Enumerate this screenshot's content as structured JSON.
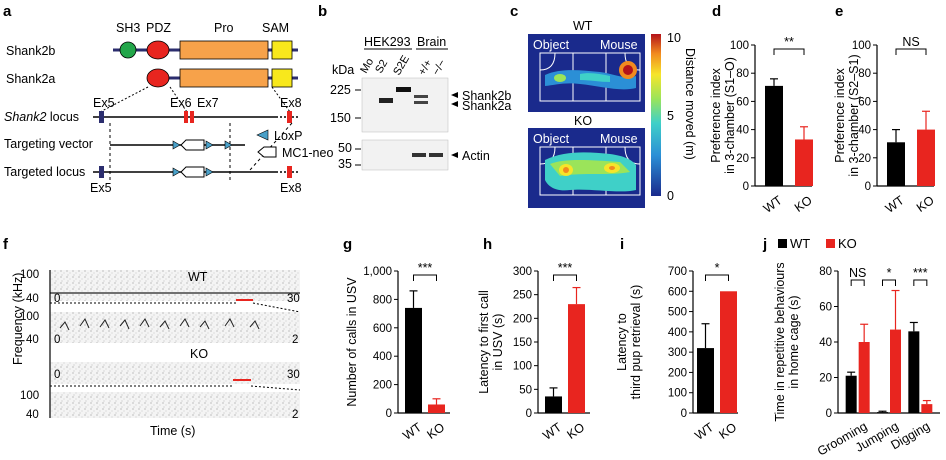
{
  "panels": {
    "a": "a",
    "b": "b",
    "c": "c",
    "d": "d",
    "e": "e",
    "f": "f",
    "g": "g",
    "h": "h",
    "i": "i",
    "j": "j"
  },
  "panel_a": {
    "domains": [
      "SH3",
      "PDZ",
      "Pro",
      "SAM"
    ],
    "isoforms": [
      "Shank2b",
      "Shank2a"
    ],
    "locus_label_italic": "Shank2",
    "locus_label_rest": " locus",
    "targeting_vector": "Targeting vector",
    "targeted_locus": "Targeted locus",
    "exons": [
      "Ex5",
      "Ex6",
      "Ex7",
      "Ex8"
    ],
    "legend": [
      "LoxP",
      "MC1-neo"
    ]
  },
  "panel_b": {
    "group_labels": [
      "HEK293",
      "Brain"
    ],
    "lane_labels": [
      "Mo",
      "S2",
      "S2E",
      "+/+",
      "−/−"
    ],
    "kda_label": "kDa",
    "markers_top": [
      "225",
      "150"
    ],
    "markers_bottom": [
      "50",
      "35"
    ],
    "bands_top": [
      "Shank2b",
      "Shank2a"
    ],
    "band_bottom": "Actin"
  },
  "panel_c": {
    "wt_label": "WT",
    "ko_label": "KO",
    "object_label": "Object",
    "mouse_label": "Mouse",
    "colorbar_label": "Distance moved (m)",
    "colorbar_ticks": [
      "10",
      "5",
      "0"
    ],
    "colors": {
      "bg": "#1a2a8c",
      "accent": "#d7261e"
    }
  },
  "panel_f": {
    "ylabel": "Frequency (kHz)",
    "xlabel": "Time (s)",
    "wt_label": "WT",
    "ko_label": "KO",
    "y_ticks": [
      "100",
      "40"
    ],
    "x_ticks_long": [
      "0",
      "30"
    ],
    "x_ticks_short": [
      "0",
      "2"
    ]
  },
  "chart_data": [
    {
      "id": "d",
      "type": "bar",
      "ylabel": "Preference index in 3-chamber (S1–O)",
      "ylabel_lines": [
        "Preference index",
        "in 3-chamber (S1–O)"
      ],
      "categories": [
        "WT",
        "KO"
      ],
      "values": [
        71,
        33
      ],
      "errors": [
        5,
        9
      ],
      "ylim": [
        0,
        100
      ],
      "yticks": [
        "0",
        "20",
        "40",
        "60",
        "80",
        "100"
      ],
      "significance": "**"
    },
    {
      "id": "e",
      "type": "bar",
      "ylabel": "Preference index in 3-chamber (S2–S1)",
      "ylabel_lines": [
        "Preference index",
        "in 3-chamber (S2–S1)"
      ],
      "categories": [
        "WT",
        "KO"
      ],
      "values": [
        31,
        40
      ],
      "errors": [
        9,
        13
      ],
      "ylim": [
        0,
        100
      ],
      "yticks": [
        "0",
        "20",
        "40",
        "60",
        "80",
        "100"
      ],
      "significance": "NS"
    },
    {
      "id": "g",
      "type": "bar",
      "ylabel": "Number of calls in USV",
      "ylabel_lines": [
        "Number of calls in USV"
      ],
      "categories": [
        "WT",
        "KO"
      ],
      "values": [
        740,
        60
      ],
      "errors": [
        120,
        40
      ],
      "ylim": [
        0,
        1000
      ],
      "yticks": [
        "0",
        "200",
        "400",
        "600",
        "800",
        "1,000"
      ],
      "significance": "***"
    },
    {
      "id": "h",
      "type": "bar",
      "ylabel": "Latency to first call in USV (s)",
      "ylabel_lines": [
        "Latency to first call",
        "in USV (s)"
      ],
      "categories": [
        "WT",
        "KO"
      ],
      "values": [
        35,
        230
      ],
      "errors": [
        18,
        35
      ],
      "ylim": [
        0,
        300
      ],
      "yticks": [
        "0",
        "50",
        "100",
        "150",
        "200",
        "250",
        "300"
      ],
      "significance": "***"
    },
    {
      "id": "i",
      "type": "bar",
      "ylabel": "Latency to third pup retrieval (s)",
      "ylabel_lines": [
        "Latency to",
        "third pup retrieval (s)"
      ],
      "categories": [
        "WT",
        "KO"
      ],
      "values": [
        320,
        600
      ],
      "errors": [
        120,
        0
      ],
      "ylim": [
        0,
        700
      ],
      "yticks": [
        "0",
        "100",
        "200",
        "300",
        "400",
        "500",
        "600",
        "700"
      ],
      "significance": "*"
    },
    {
      "id": "j",
      "type": "bar",
      "ylabel": "Time in repetitive behaviours in home cage (s)",
      "ylabel_lines": [
        "Time in repetitive behaviours",
        "in home cage (s)"
      ],
      "categories": [
        "Grooming",
        "Jumping",
        "Digging"
      ],
      "series": [
        {
          "name": "WT",
          "values": [
            21,
            0.5,
            46
          ],
          "errors": [
            2,
            0.5,
            5
          ]
        },
        {
          "name": "KO",
          "values": [
            40,
            47,
            5
          ],
          "errors": [
            10,
            22,
            2
          ]
        }
      ],
      "ylim": [
        0,
        80
      ],
      "yticks": [
        "0",
        "20",
        "40",
        "60",
        "80"
      ],
      "significance": [
        "NS",
        "*",
        "***"
      ],
      "legend": [
        "WT",
        "KO"
      ]
    }
  ],
  "colors": {
    "wt": "#000000",
    "ko": "#e8251f"
  }
}
